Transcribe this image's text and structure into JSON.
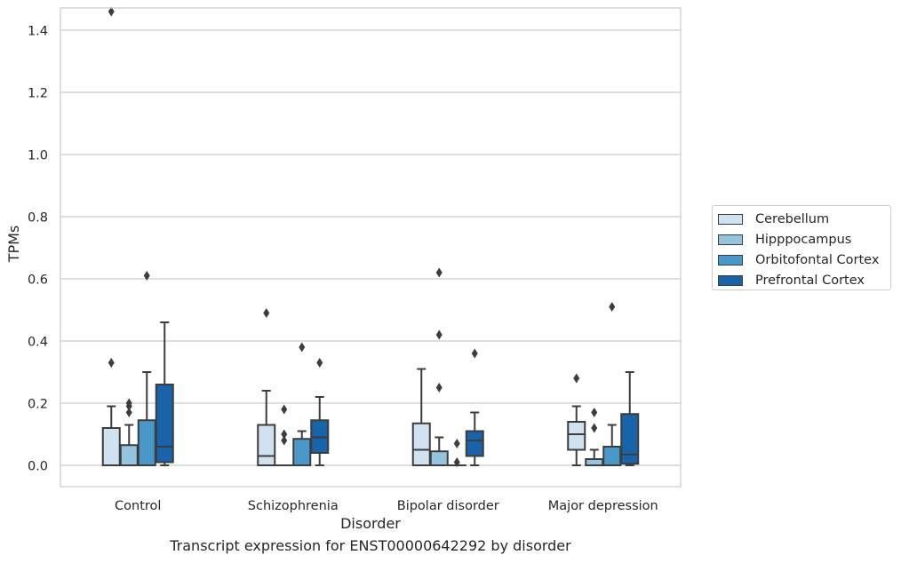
{
  "caption": "Transcript expression for ENST00000642292 by disorder",
  "chart_data": {
    "type": "box",
    "xlabel": "Disorder",
    "ylabel": "TPMs",
    "ylim": [
      -0.07,
      1.54
    ],
    "yticks": [
      0.0,
      0.2,
      0.4,
      0.6,
      0.8,
      1.0,
      1.2,
      1.4
    ],
    "ytick_labels": [
      "0.0",
      "0.2",
      "0.4",
      "0.6",
      "0.8",
      "1.0",
      "1.2",
      "1.4"
    ],
    "grid": "horizontal",
    "legend_position": "right-center",
    "categories": [
      "Control",
      "Schizophrenia",
      "Bipolar disorder",
      "Major depression"
    ],
    "series": [
      {
        "name": "Cerebellum",
        "color": "#d0e1f2",
        "boxes": [
          {
            "min": 0.0,
            "q1": 0.0,
            "median": 0.0,
            "q3": 0.12,
            "max": 0.19,
            "outliers": [
              0.33,
              1.46
            ]
          },
          {
            "min": 0.0,
            "q1": 0.0,
            "median": 0.03,
            "q3": 0.13,
            "max": 0.24,
            "outliers": [
              0.49
            ]
          },
          {
            "min": 0.0,
            "q1": 0.0,
            "median": 0.05,
            "q3": 0.135,
            "max": 0.31,
            "outliers": []
          },
          {
            "min": 0.0,
            "q1": 0.05,
            "median": 0.1,
            "q3": 0.14,
            "max": 0.19,
            "outliers": [
              0.28
            ]
          }
        ]
      },
      {
        "name": "Hipppocampus",
        "color": "#94c4df",
        "boxes": [
          {
            "min": 0.0,
            "q1": 0.0,
            "median": 0.0,
            "q3": 0.065,
            "max": 0.13,
            "outliers": [
              0.17,
              0.19,
              0.2
            ]
          },
          {
            "min": 0.0,
            "q1": 0.0,
            "median": 0.0,
            "q3": 0.0,
            "max": 0.0,
            "outliers": [
              0.08,
              0.1,
              0.18
            ]
          },
          {
            "min": 0.0,
            "q1": 0.0,
            "median": 0.0,
            "q3": 0.045,
            "max": 0.09,
            "outliers": [
              0.25,
              0.42,
              0.62
            ]
          },
          {
            "min": 0.0,
            "q1": 0.0,
            "median": 0.0,
            "q3": 0.02,
            "max": 0.05,
            "outliers": [
              0.12,
              0.17
            ]
          }
        ]
      },
      {
        "name": "Orbitofontal Cortex",
        "color": "#4a98c9",
        "boxes": [
          {
            "min": 0.0,
            "q1": 0.0,
            "median": 0.0,
            "q3": 0.145,
            "max": 0.3,
            "outliers": [
              0.61
            ]
          },
          {
            "min": 0.0,
            "q1": 0.0,
            "median": 0.0,
            "q3": 0.085,
            "max": 0.11,
            "outliers": [
              0.38
            ]
          },
          {
            "min": 0.0,
            "q1": 0.0,
            "median": 0.0,
            "q3": 0.0,
            "max": 0.0,
            "outliers": [
              0.01,
              0.07
            ]
          },
          {
            "min": 0.0,
            "q1": 0.0,
            "median": 0.0,
            "q3": 0.06,
            "max": 0.13,
            "outliers": [
              0.51
            ]
          }
        ]
      },
      {
        "name": "Prefrontal Cortex",
        "color": "#1764ab",
        "boxes": [
          {
            "min": 0.0,
            "q1": 0.01,
            "median": 0.06,
            "q3": 0.26,
            "max": 0.46,
            "outliers": []
          },
          {
            "min": 0.0,
            "q1": 0.04,
            "median": 0.09,
            "q3": 0.145,
            "max": 0.22,
            "outliers": [
              0.33
            ]
          },
          {
            "min": 0.0,
            "q1": 0.03,
            "median": 0.08,
            "q3": 0.11,
            "max": 0.17,
            "outliers": [
              0.36
            ]
          },
          {
            "min": 0.0,
            "q1": 0.005,
            "median": 0.035,
            "q3": 0.165,
            "max": 0.3,
            "outliers": []
          }
        ]
      }
    ]
  }
}
